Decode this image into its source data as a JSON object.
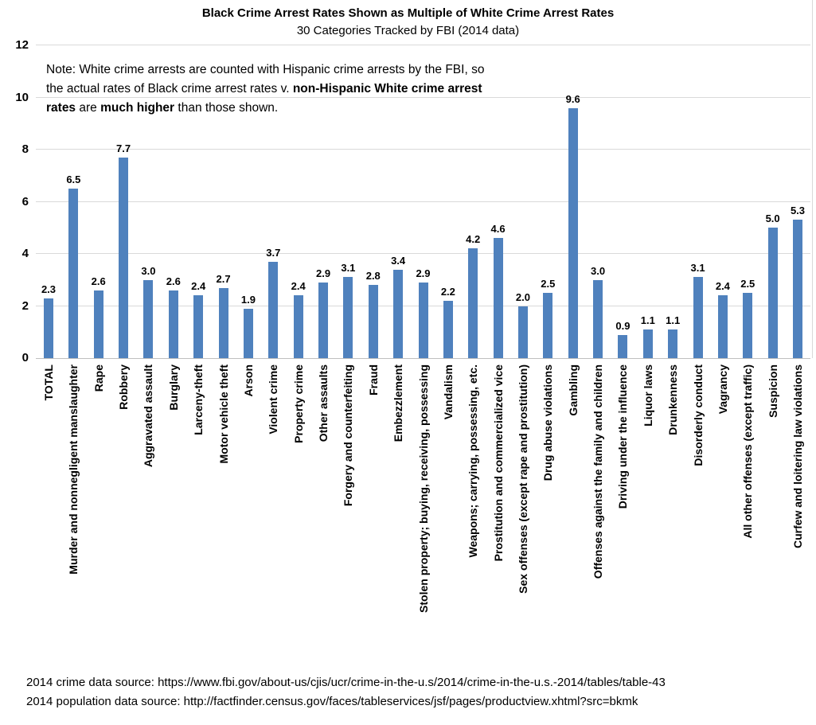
{
  "header": {
    "title": "Black Crime Arrest Rates Shown as Multiple of White Crime Arrest Rates",
    "subtitle": "30 Categories Tracked by FBI (2014 data)"
  },
  "note": {
    "lines": [
      [
        {
          "text": "Note: White crime arrests are counted with Hispanic crime arrests by the FBI, so",
          "bold": false
        }
      ],
      [
        {
          "text": "the actual rates of Black crime arrest rates v. ",
          "bold": false
        },
        {
          "text": "non-Hispanic White crime arrest",
          "bold": true
        }
      ],
      [
        {
          "text": "rates",
          "bold": true
        },
        {
          "text": " are ",
          "bold": false
        },
        {
          "text": "much higher",
          "bold": true
        },
        {
          "text": " than those shown.",
          "bold": false
        }
      ]
    ]
  },
  "colors": {
    "bar": "#4f81bd",
    "gridline": "#d9d9d9",
    "baseline": "#bfbfbf",
    "text": "#000000"
  },
  "chart_data": {
    "type": "bar",
    "title": "Black Crime Arrest Rates Shown as Multiple of White Crime Arrest Rates",
    "subtitle": "30 Categories Tracked by FBI (2014 data)",
    "categories": [
      "TOTAL",
      "Murder and nonnegligent manslaughter",
      "Rape",
      "Robbery",
      "Aggravated assault",
      "Burglary",
      "Larceny-theft",
      "Motor vehicle theft",
      "Arson",
      "Violent crime",
      "Property crime",
      "Other assaults",
      "Forgery and counterfeiting",
      "Fraud",
      "Embezzlement",
      "Stolen property; buying, receiving, possessing",
      "Vandalism",
      "Weapons; carrying, possessing, etc.",
      "Prostitution and commercialized vice",
      "Sex offenses (except rape and prostitution)",
      "Drug abuse violations",
      "Gambling",
      "Offenses against the family and children",
      "Driving under the influence",
      "Liquor laws",
      "Drunkenness",
      "Disorderly conduct",
      "Vagrancy",
      "All other offenses (except traffic)",
      "Suspicion",
      "Curfew and loitering law violations"
    ],
    "values": [
      2.3,
      6.5,
      2.6,
      7.7,
      3.0,
      2.6,
      2.4,
      2.7,
      1.9,
      3.7,
      2.4,
      2.9,
      3.1,
      2.8,
      3.4,
      2.9,
      2.2,
      4.2,
      4.6,
      2.0,
      2.5,
      9.6,
      3.0,
      0.9,
      1.1,
      1.1,
      3.1,
      2.4,
      2.5,
      5.0,
      5.3
    ],
    "value_labels": [
      "2.3",
      "6.5",
      "2.6",
      "7.7",
      "3.0",
      "2.6",
      "2.4",
      "2.7",
      "1.9",
      "3.7",
      "2.4",
      "2.9",
      "3.1",
      "2.8",
      "3.4",
      "2.9",
      "2.2",
      "4.2",
      "4.6",
      "2.0",
      "2.5",
      "9.6",
      "3.0",
      "0.9",
      "1.1",
      "1.1",
      "3.1",
      "2.4",
      "2.5",
      "5.0",
      "5.3"
    ],
    "xlabel": "",
    "ylabel": "",
    "ylim": [
      0,
      12
    ],
    "yticks": [
      0,
      2,
      4,
      6,
      8,
      10,
      12
    ],
    "grid": true,
    "legend": "none"
  },
  "footer": {
    "line1": "2014 crime data source: https://www.fbi.gov/about-us/cjis/ucr/crime-in-the-u.s/2014/crime-in-the-u.s.-2014/tables/table-43",
    "line2": "2014 population data source: http://factfinder.census.gov/faces/tableservices/jsf/pages/productview.xhtml?src=bkmk"
  }
}
